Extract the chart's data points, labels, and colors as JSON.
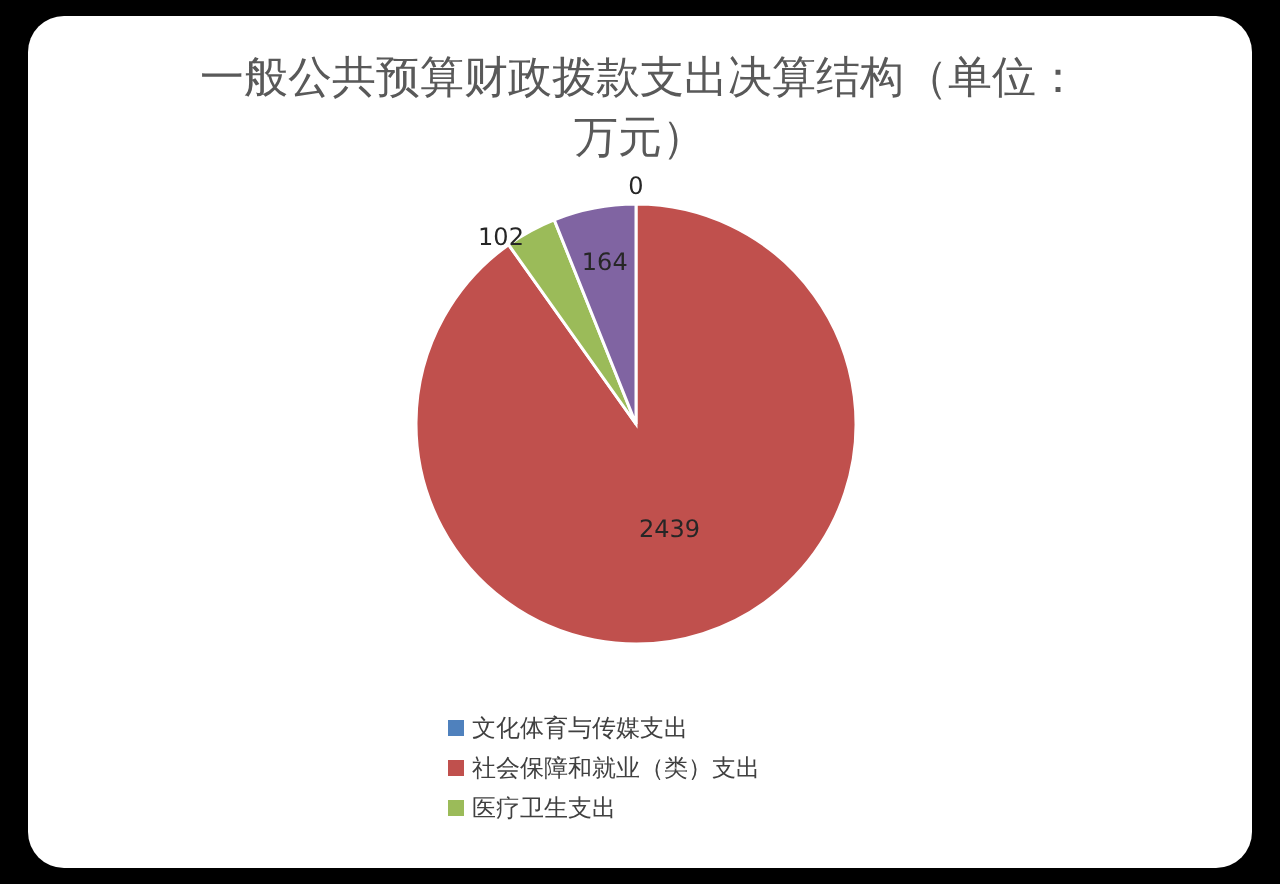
{
  "chart_data": {
    "type": "pie",
    "title": "一般公共预算财政拨款支出决算结构（单位：万元）",
    "categories": [
      "文化体育与传媒支出",
      "社会保障和就业（类）支出",
      "医疗卫生支出",
      null
    ],
    "values": [
      0,
      2439,
      102,
      164
    ],
    "colors": [
      "#4f81bd",
      "#c0504d",
      "#9bbb59",
      "#8064a2"
    ],
    "value_labels": [
      "0",
      "2439",
      "102",
      "164"
    ],
    "legend": "bottom"
  }
}
